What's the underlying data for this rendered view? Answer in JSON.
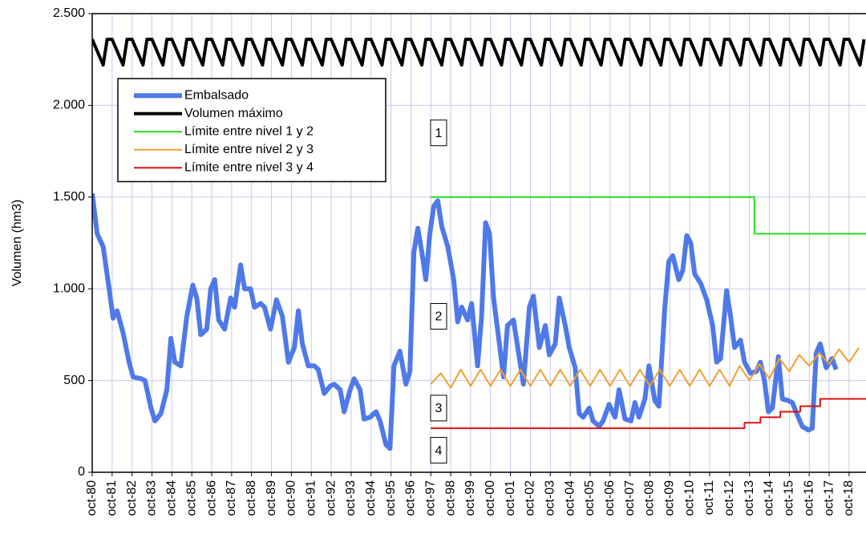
{
  "chart_data": {
    "type": "line",
    "y_label": "Volumen (hm3)",
    "xlim": [
      1980.75,
      2019.6
    ],
    "ylim": [
      0,
      2500
    ],
    "grid": true,
    "legend": "upper left",
    "yticks": [
      0,
      500,
      {
        "value": 1000,
        "label": "1.000"
      },
      {
        "value": 1500,
        "label": "1.500"
      },
      {
        "value": 2000,
        "label": "2.000"
      },
      {
        "value": 2500,
        "label": "2.500"
      }
    ],
    "xticks": [
      {
        "value": 1980.75,
        "label": "oct-80"
      },
      {
        "value": 1981.75,
        "label": "oct-81"
      },
      {
        "value": 1982.75,
        "label": "oct-82"
      },
      {
        "value": 1983.75,
        "label": "oct-83"
      },
      {
        "value": 1984.75,
        "label": "oct-84"
      },
      {
        "value": 1985.75,
        "label": "oct-85"
      },
      {
        "value": 1986.75,
        "label": "oct-86"
      },
      {
        "value": 1987.75,
        "label": "oct-87"
      },
      {
        "value": 1988.75,
        "label": "oct-88"
      },
      {
        "value": 1989.75,
        "label": "oct-89"
      },
      {
        "value": 1990.75,
        "label": "oct-90"
      },
      {
        "value": 1991.75,
        "label": "oct-91"
      },
      {
        "value": 1992.75,
        "label": "oct-92"
      },
      {
        "value": 1993.75,
        "label": "oct-93"
      },
      {
        "value": 1994.75,
        "label": "oct-94"
      },
      {
        "value": 1995.75,
        "label": "oct-95"
      },
      {
        "value": 1996.75,
        "label": "oct-96"
      },
      {
        "value": 1997.75,
        "label": "oct-97"
      },
      {
        "value": 1998.75,
        "label": "oct-98"
      },
      {
        "value": 1999.75,
        "label": "oct-99"
      },
      {
        "value": 2000.75,
        "label": "oct-00"
      },
      {
        "value": 2001.75,
        "label": "oct-01"
      },
      {
        "value": 2002.75,
        "label": "oct-02"
      },
      {
        "value": 2003.75,
        "label": "oct-03"
      },
      {
        "value": 2004.75,
        "label": "oct-04"
      },
      {
        "value": 2005.75,
        "label": "oct-05"
      },
      {
        "value": 2006.75,
        "label": "oct-06"
      },
      {
        "value": 2007.75,
        "label": "oct-07"
      },
      {
        "value": 2008.75,
        "label": "oct-08"
      },
      {
        "value": 2009.75,
        "label": "oct-09"
      },
      {
        "value": 2010.75,
        "label": "oct-10"
      },
      {
        "value": 2011.75,
        "label": "oct-11"
      },
      {
        "value": 2012.75,
        "label": "oct-12"
      },
      {
        "value": 2013.75,
        "label": "oct-13"
      },
      {
        "value": 2014.75,
        "label": "oct-14"
      },
      {
        "value": 2015.75,
        "label": "oct-15"
      },
      {
        "value": 2016.75,
        "label": "oct-16"
      },
      {
        "value": 2017.75,
        "label": "oct-17"
      },
      {
        "value": 2018.75,
        "label": "oct-18"
      }
    ],
    "series": [
      {
        "name": "Embalsado",
        "color": "#4f79e8",
        "width": 6,
        "x": [
          1980.75,
          1981.0,
          1981.3,
          1981.6,
          1981.8,
          1982.0,
          1982.3,
          1982.6,
          1982.8,
          1983.2,
          1983.4,
          1983.7,
          1983.9,
          1984.2,
          1984.5,
          1984.7,
          1984.9,
          1985.2,
          1985.5,
          1985.8,
          1986.0,
          1986.2,
          1986.5,
          1986.7,
          1986.9,
          1987.1,
          1987.4,
          1987.7,
          1987.9,
          1988.2,
          1988.4,
          1988.7,
          1988.9,
          1989.2,
          1989.4,
          1989.7,
          1990.0,
          1990.3,
          1990.6,
          1990.9,
          1991.1,
          1991.3,
          1991.6,
          1991.9,
          1992.1,
          1992.4,
          1992.7,
          1992.9,
          1993.2,
          1993.4,
          1993.7,
          1993.9,
          1994.2,
          1994.4,
          1994.7,
          1995.0,
          1995.2,
          1995.5,
          1995.7,
          1995.9,
          1996.2,
          1996.5,
          1996.7,
          1996.9,
          1997.1,
          1997.3,
          1997.5,
          1997.7,
          1997.9,
          1998.1,
          1998.3,
          1998.6,
          1998.9,
          1999.1,
          1999.3,
          1999.6,
          1999.8,
          2000.1,
          2000.3,
          2000.5,
          2000.7,
          2000.9,
          2001.1,
          2001.4,
          2001.6,
          2001.9,
          2002.2,
          2002.4,
          2002.7,
          2002.9,
          2003.2,
          2003.5,
          2003.7,
          2004.0,
          2004.2,
          2004.5,
          2004.7,
          2005.0,
          2005.2,
          2005.4,
          2005.7,
          2005.9,
          2006.2,
          2006.4,
          2006.7,
          2007.0,
          2007.2,
          2007.5,
          2007.8,
          2008.0,
          2008.2,
          2008.5,
          2008.7,
          2009.0,
          2009.2,
          2009.5,
          2009.7,
          2009.9,
          2010.2,
          2010.4,
          2010.6,
          2010.8,
          2011.0,
          2011.3,
          2011.6,
          2011.9,
          2012.1,
          2012.3,
          2012.6,
          2012.8,
          2013.0,
          2013.3,
          2013.5,
          2013.8,
          2014.1,
          2014.3,
          2014.5,
          2014.7,
          2014.9,
          2015.2,
          2015.4,
          2015.7,
          2015.9,
          2016.2,
          2016.4,
          2016.7,
          2016.9,
          2017.1,
          2017.3,
          2017.6,
          2017.9,
          2018.1
        ],
        "values": [
          1520,
          1300,
          1230,
          1000,
          840,
          880,
          760,
          600,
          520,
          510,
          500,
          350,
          280,
          320,
          450,
          730,
          600,
          580,
          850,
          1020,
          950,
          750,
          780,
          1000,
          1050,
          830,
          780,
          950,
          900,
          1130,
          1000,
          1000,
          900,
          920,
          900,
          780,
          940,
          850,
          600,
          680,
          880,
          700,
          580,
          580,
          560,
          430,
          470,
          480,
          450,
          330,
          450,
          510,
          450,
          290,
          300,
          330,
          280,
          150,
          130,
          580,
          660,
          480,
          550,
          1200,
          1330,
          1200,
          1050,
          1300,
          1450,
          1480,
          1340,
          1230,
          1050,
          820,
          900,
          830,
          920,
          580,
          850,
          1360,
          1300,
          950,
          780,
          520,
          800,
          830,
          620,
          480,
          900,
          960,
          680,
          800,
          640,
          700,
          950,
          800,
          680,
          570,
          320,
          300,
          350,
          280,
          250,
          280,
          370,
          300,
          450,
          290,
          280,
          380,
          300,
          400,
          580,
          390,
          360,
          900,
          1150,
          1180,
          1050,
          1100,
          1290,
          1250,
          1080,
          1030,
          940,
          800,
          600,
          620,
          990,
          850,
          680,
          720,
          600,
          540,
          550,
          600,
          500,
          330,
          350,
          630,
          400,
          390,
          380,
          300,
          250,
          230,
          240,
          650,
          700,
          570,
          620,
          560
        ]
      },
      {
        "name": "Volumen máximo",
        "color": "#000000",
        "width": 4,
        "x": [
          1980.75,
          1981.3,
          1981.5,
          1981.75,
          1982.3,
          1982.5,
          1982.75,
          1983.3,
          1983.5,
          1983.75,
          1984.3,
          1984.5,
          1984.75,
          1985.3,
          1985.5,
          1985.75,
          1986.3,
          1986.5,
          1986.75,
          1987.3,
          1987.5,
          1987.75,
          1988.3,
          1988.5,
          1988.75,
          1989.3,
          1989.5,
          1989.75,
          1990.3,
          1990.5,
          1990.75,
          1991.3,
          1991.5,
          1991.75,
          1992.3,
          1992.5,
          1992.75,
          1993.3,
          1993.5,
          1993.75,
          1994.3,
          1994.5,
          1994.75,
          1995.3,
          1995.5,
          1995.75,
          1996.3,
          1996.5,
          1996.75,
          1997.3,
          1997.5,
          1997.75,
          1998.3,
          1998.5,
          1998.75,
          1999.3,
          1999.5,
          1999.75,
          2000.3,
          2000.5,
          2000.75,
          2001.3,
          2001.5,
          2001.75,
          2002.3,
          2002.5,
          2002.75,
          2003.3,
          2003.5,
          2003.75,
          2004.3,
          2004.5,
          2004.75,
          2005.3,
          2005.5,
          2005.75,
          2006.3,
          2006.5,
          2006.75,
          2007.3,
          2007.5,
          2007.75,
          2008.3,
          2008.5,
          2008.75,
          2009.3,
          2009.5,
          2009.75,
          2010.3,
          2010.5,
          2010.75,
          2011.3,
          2011.5,
          2011.75,
          2012.3,
          2012.5,
          2012.75,
          2013.3,
          2013.5,
          2013.75,
          2014.3,
          2014.5,
          2014.75,
          2015.3,
          2015.5,
          2015.75,
          2016.3,
          2016.5,
          2016.75,
          2017.3,
          2017.5,
          2017.75,
          2018.3,
          2018.5,
          2018.75,
          2019.3,
          2019.5
        ],
        "values": [
          2360,
          2220,
          2360,
          2360,
          2220,
          2360,
          2360,
          2220,
          2360,
          2360,
          2220,
          2360,
          2360,
          2220,
          2360,
          2360,
          2220,
          2360,
          2360,
          2220,
          2360,
          2360,
          2220,
          2360,
          2360,
          2220,
          2360,
          2360,
          2220,
          2360,
          2360,
          2220,
          2360,
          2360,
          2220,
          2360,
          2360,
          2220,
          2360,
          2360,
          2220,
          2360,
          2360,
          2220,
          2360,
          2360,
          2220,
          2360,
          2360,
          2220,
          2360,
          2360,
          2220,
          2360,
          2360,
          2220,
          2360,
          2360,
          2220,
          2360,
          2360,
          2220,
          2360,
          2360,
          2220,
          2360,
          2360,
          2220,
          2360,
          2360,
          2220,
          2360,
          2360,
          2220,
          2360,
          2360,
          2220,
          2360,
          2360,
          2220,
          2360,
          2360,
          2220,
          2360,
          2360,
          2220,
          2360,
          2360,
          2220,
          2360,
          2360,
          2220,
          2360,
          2360,
          2220,
          2360,
          2360,
          2220,
          2360,
          2360,
          2220,
          2360,
          2360,
          2220,
          2360,
          2360,
          2220,
          2360,
          2360,
          2220,
          2360,
          2360,
          2220,
          2360,
          2360,
          2220,
          2360
        ]
      },
      {
        "name": "Límite entre nivel 1 y 2",
        "color": "#22dd22",
        "width": 2,
        "x": [
          1997.75,
          2014.0,
          2014.0,
          2019.6
        ],
        "values": [
          1500,
          1500,
          1300,
          1300
        ]
      },
      {
        "name": "Límite entre nivel 2 y 3",
        "color": "#f0a030",
        "width": 2,
        "x": [
          1997.75,
          1998.25,
          1998.75,
          1999.25,
          1999.75,
          2000.25,
          2000.75,
          2001.25,
          2001.75,
          2002.25,
          2002.75,
          2003.25,
          2003.75,
          2004.25,
          2004.75,
          2005.25,
          2005.75,
          2006.25,
          2006.75,
          2007.25,
          2007.75,
          2008.25,
          2008.75,
          2009.25,
          2009.75,
          2010.25,
          2010.75,
          2011.25,
          2011.75,
          2012.25,
          2012.75,
          2013.25,
          2013.75,
          2014.25,
          2014.75,
          2015.25,
          2015.75,
          2016.25,
          2016.75,
          2017.25,
          2017.75,
          2018.25,
          2018.75,
          2019.25
        ],
        "values": [
          480,
          540,
          460,
          560,
          470,
          560,
          470,
          560,
          470,
          560,
          470,
          560,
          470,
          560,
          470,
          560,
          470,
          560,
          470,
          560,
          470,
          560,
          470,
          560,
          470,
          560,
          470,
          560,
          470,
          560,
          470,
          580,
          500,
          590,
          510,
          620,
          550,
          640,
          580,
          650,
          590,
          670,
          600,
          680
        ]
      },
      {
        "name": "Límite entre nivel 3 y 4",
        "color": "#e01010",
        "width": 2,
        "x": [
          1997.75,
          2013.5,
          2013.5,
          2014.3,
          2014.3,
          2015.3,
          2015.3,
          2016.3,
          2016.3,
          2017.3,
          2017.3,
          2019.6
        ],
        "values": [
          240,
          240,
          270,
          270,
          300,
          300,
          330,
          330,
          360,
          360,
          400,
          400
        ]
      }
    ],
    "annotations": [
      "1",
      "2",
      "3",
      "4"
    ],
    "annotation_values": [
      1850,
      850,
      350,
      120
    ]
  }
}
